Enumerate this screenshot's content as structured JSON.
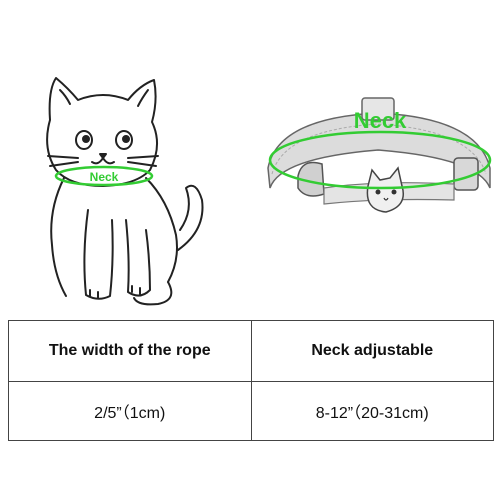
{
  "illustration": {
    "cat_neck_label": "Neck",
    "collar_neck_label": "Neck",
    "highlight_color": "#33cc33"
  },
  "table": {
    "headers": [
      "The width of the rope",
      "Neck adjustable"
    ],
    "values": [
      "2/5”（1cm)",
      "8-12”（20-31cm)"
    ]
  }
}
